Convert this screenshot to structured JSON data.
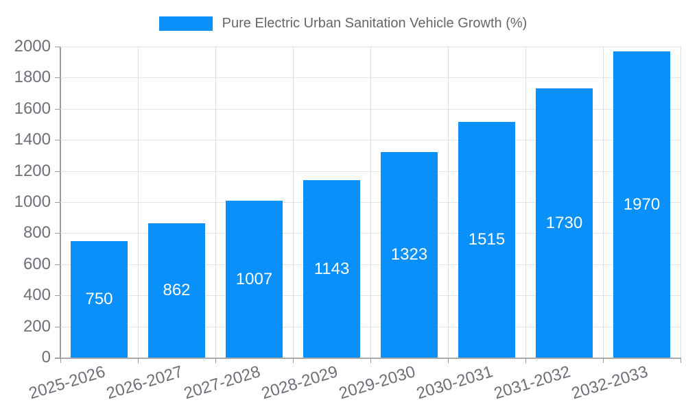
{
  "legend": {
    "label": "Pure Electric Urban Sanitation Vehicle Growth (%)"
  },
  "chart_data": {
    "type": "bar",
    "title": "Pure Electric Urban Sanitation Vehicle Growth (%)",
    "categories": [
      "2025-2026",
      "2026-2027",
      "2027-2028",
      "2028-2029",
      "2029-2030",
      "2030-2031",
      "2031-2032",
      "2032-2033"
    ],
    "values": [
      750,
      862,
      1007,
      1143,
      1323,
      1515,
      1730,
      1970
    ],
    "xlabel": "",
    "ylabel": "",
    "ylim": [
      0,
      2000
    ],
    "yticks": [
      0,
      200,
      400,
      600,
      800,
      1000,
      1200,
      1400,
      1600,
      1800,
      2000
    ],
    "grid": true,
    "legend_position": "top",
    "x_label_rotation_deg": -17,
    "value_labels": "inside-center"
  },
  "colors": {
    "accent": "#0990fa",
    "grid_h": "#e4e4e4",
    "grid_v": "#dddddd",
    "axis": "#999999",
    "tick_label": "#6e7079",
    "legend_text": "#666666",
    "bar_value_label": "#ffffff",
    "background": "#ffffff"
  }
}
